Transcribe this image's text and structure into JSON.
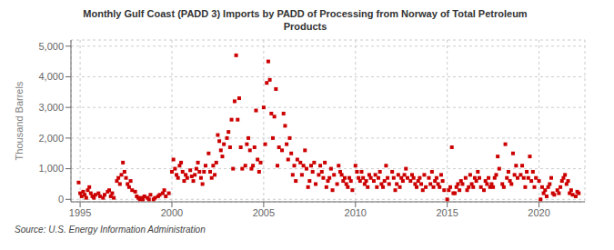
{
  "chart_data": {
    "type": "scatter",
    "title": "Monthly Gulf Coast (PADD 3) Imports by PADD of Processing from Norway of Total Petroleum\nProducts",
    "ylabel": "Thousand Barrels",
    "annotations": [
      "Source: U.S. Energy Information Administration"
    ],
    "color": "#cc0000",
    "marker": "square",
    "grid": true,
    "xlim": [
      1994.5,
      2022.5
    ],
    "ylim": [
      -80,
      5200
    ],
    "xticks": [
      1995,
      2000,
      2005,
      2010,
      2015,
      2020
    ],
    "yticks": [
      0,
      {
        "value": 1000,
        "label": "1,000"
      },
      {
        "value": 2000,
        "label": "2,000"
      },
      {
        "value": 3000,
        "label": "3,000"
      },
      {
        "value": 4000,
        "label": "4,000"
      },
      {
        "value": 5000,
        "label": "5,000"
      }
    ],
    "x": [
      1994.917,
      1995.0,
      1995.083,
      1995.167,
      1995.25,
      1995.333,
      1995.417,
      1995.5,
      1995.583,
      1995.667,
      1995.75,
      1995.833,
      1996.0,
      1996.083,
      1996.25,
      1996.333,
      1996.5,
      1996.583,
      1996.667,
      1996.75,
      1996.833,
      1997.0,
      1997.083,
      1997.167,
      1997.25,
      1997.333,
      1997.417,
      1997.5,
      1997.583,
      1997.667,
      1997.75,
      1997.833,
      1998.0,
      1998.083,
      1998.167,
      1998.25,
      1998.333,
      1998.417,
      1998.5,
      1998.667,
      1998.75,
      1998.833,
      1999.0,
      1999.083,
      1999.25,
      1999.333,
      1999.5,
      1999.583,
      1999.667,
      1999.833,
      2000.0,
      2000.083,
      2000.167,
      2000.25,
      2000.333,
      2000.417,
      2000.5,
      2000.583,
      2000.667,
      2000.75,
      2000.833,
      2001.0,
      2001.083,
      2001.167,
      2001.25,
      2001.333,
      2001.417,
      2001.5,
      2001.583,
      2001.667,
      2001.75,
      2001.833,
      2002.0,
      2002.083,
      2002.167,
      2002.25,
      2002.333,
      2002.417,
      2002.5,
      2002.583,
      2002.667,
      2002.75,
      2002.833,
      2003.0,
      2003.083,
      2003.167,
      2003.25,
      2003.333,
      2003.417,
      2003.5,
      2003.583,
      2003.667,
      2003.75,
      2003.833,
      2004.0,
      2004.083,
      2004.167,
      2004.25,
      2004.333,
      2004.417,
      2004.5,
      2004.583,
      2004.667,
      2004.75,
      2004.833,
      2005.0,
      2005.083,
      2005.167,
      2005.25,
      2005.333,
      2005.417,
      2005.5,
      2005.583,
      2005.667,
      2005.75,
      2005.833,
      2006.0,
      2006.083,
      2006.167,
      2006.25,
      2006.333,
      2006.417,
      2006.5,
      2006.583,
      2006.667,
      2006.75,
      2006.833,
      2007.0,
      2007.083,
      2007.167,
      2007.25,
      2007.333,
      2007.417,
      2007.5,
      2007.583,
      2007.667,
      2007.75,
      2007.833,
      2008.0,
      2008.083,
      2008.167,
      2008.25,
      2008.333,
      2008.417,
      2008.5,
      2008.583,
      2008.667,
      2008.75,
      2008.833,
      2009.0,
      2009.083,
      2009.167,
      2009.25,
      2009.333,
      2009.417,
      2009.5,
      2009.583,
      2009.667,
      2009.75,
      2009.833,
      2010.0,
      2010.083,
      2010.167,
      2010.25,
      2010.333,
      2010.417,
      2010.5,
      2010.583,
      2010.667,
      2010.75,
      2010.833,
      2011.0,
      2011.083,
      2011.167,
      2011.25,
      2011.333,
      2011.417,
      2011.5,
      2011.583,
      2011.667,
      2011.75,
      2011.833,
      2012.0,
      2012.083,
      2012.167,
      2012.25,
      2012.333,
      2012.417,
      2012.5,
      2012.583,
      2012.667,
      2012.75,
      2012.833,
      2013.0,
      2013.083,
      2013.167,
      2013.25,
      2013.333,
      2013.417,
      2013.5,
      2013.583,
      2013.667,
      2013.75,
      2013.833,
      2014.0,
      2014.083,
      2014.167,
      2014.25,
      2014.333,
      2014.417,
      2014.5,
      2014.583,
      2014.667,
      2014.75,
      2014.833,
      2015.0,
      2015.083,
      2015.167,
      2015.25,
      2015.333,
      2015.417,
      2015.5,
      2015.583,
      2015.667,
      2015.75,
      2015.833,
      2016.0,
      2016.083,
      2016.167,
      2016.25,
      2016.333,
      2016.417,
      2016.5,
      2016.583,
      2016.667,
      2016.75,
      2016.833,
      2017.0,
      2017.083,
      2017.167,
      2017.25,
      2017.333,
      2017.417,
      2017.5,
      2017.583,
      2017.667,
      2017.75,
      2017.833,
      2018.0,
      2018.083,
      2018.167,
      2018.25,
      2018.333,
      2018.417,
      2018.5,
      2018.583,
      2018.667,
      2018.75,
      2018.833,
      2019.0,
      2019.083,
      2019.167,
      2019.25,
      2019.333,
      2019.417,
      2019.5,
      2019.583,
      2019.667,
      2019.75,
      2019.833,
      2020.0,
      2020.083,
      2020.167,
      2020.25,
      2020.333,
      2020.417,
      2020.5,
      2020.583,
      2020.667,
      2020.75,
      2020.833,
      2021.0,
      2021.083,
      2021.167,
      2021.25,
      2021.333,
      2021.417,
      2021.5,
      2021.583,
      2021.667,
      2021.75,
      2021.833,
      2022.0,
      2022.083,
      2022.167
    ],
    "values": [
      550,
      200,
      100,
      250,
      150,
      50,
      300,
      400,
      200,
      100,
      50,
      150,
      200,
      100,
      50,
      150,
      250,
      300,
      100,
      200,
      50,
      600,
      700,
      500,
      800,
      1200,
      900,
      700,
      500,
      400,
      600,
      300,
      250,
      100,
      50,
      0,
      50,
      0,
      100,
      50,
      0,
      150,
      0,
      50,
      100,
      150,
      200,
      300,
      100,
      200,
      900,
      1300,
      1000,
      800,
      700,
      1100,
      1200,
      900,
      600,
      800,
      700,
      950,
      750,
      600,
      800,
      1000,
      1200,
      900,
      700,
      500,
      900,
      1100,
      1500,
      900,
      700,
      1100,
      800,
      1200,
      2100,
      1900,
      1600,
      1400,
      1800,
      2000,
      2200,
      1700,
      2600,
      1000,
      3200,
      4700,
      2600,
      3300,
      1700,
      1000,
      1100,
      1800,
      2000,
      1600,
      1000,
      1100,
      1700,
      2900,
      1300,
      900,
      1200,
      3000,
      1800,
      3800,
      4500,
      3900,
      2800,
      2000,
      2700,
      3600,
      1100,
      1700,
      1600,
      2800,
      2400,
      1800,
      1300,
      2000,
      1500,
      800,
      1100,
      600,
      1300,
      1200,
      800,
      1100,
      1600,
      1000,
      400,
      600,
      1100,
      900,
      1200,
      500,
      800,
      1100,
      900,
      700,
      1200,
      400,
      600,
      700,
      1000,
      300,
      800,
      500,
      1100,
      900,
      800,
      600,
      700,
      500,
      400,
      700,
      600,
      300,
      1100,
      900,
      700,
      600,
      900,
      700,
      500,
      600,
      400,
      800,
      700,
      600,
      800,
      400,
      700,
      900,
      500,
      400,
      600,
      1100,
      700,
      500,
      900,
      700,
      300,
      500,
      800,
      400,
      700,
      600,
      800,
      1000,
      700,
      600,
      800,
      700,
      500,
      400,
      600,
      700,
      500,
      300,
      800,
      400,
      700,
      500,
      900,
      400,
      600,
      700,
      500,
      400,
      800,
      600,
      300,
      0,
      300,
      400,
      1700,
      200,
      200,
      400,
      500,
      300,
      600,
      500,
      700,
      300,
      400,
      800,
      500,
      400,
      700,
      600,
      900,
      700,
      400,
      300,
      600,
      500,
      700,
      400,
      500,
      400,
      700,
      800,
      1400,
      1000,
      500,
      400,
      1800,
      700,
      900,
      600,
      500,
      1500,
      800,
      1100,
      700,
      800,
      1100,
      700,
      400,
      900,
      700,
      1400,
      600,
      900,
      400,
      700,
      600,
      0,
      400,
      200,
      300,
      100,
      400,
      500,
      700,
      200,
      150,
      300,
      200,
      400,
      600,
      700,
      800,
      500,
      600,
      200,
      300,
      150,
      100,
      250,
      200
    ]
  }
}
